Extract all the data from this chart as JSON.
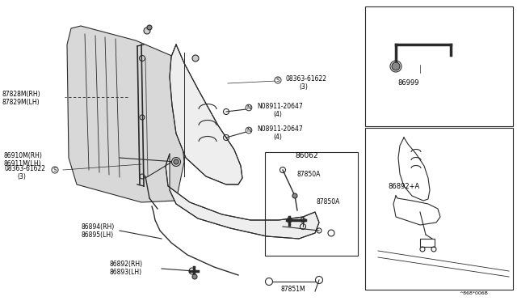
{
  "bg_color": "#ffffff",
  "line_color": "#2a2a2a",
  "text_color": "#000000",
  "fig_width": 6.4,
  "fig_height": 3.72,
  "watermark": "^868*006B",
  "labels": {
    "87828M_RH": "87828M(RH)",
    "87829M_LH": "87829M(LH)",
    "08363_top": "08363-61622",
    "08363_top_qty": "(3)",
    "08363_left": "08363-61622",
    "08363_left_qty": "(3)",
    "08911_top": "N08911-20647",
    "08911_top_qty": "(4)",
    "08911_bot": "N08911-20647",
    "08911_bot_qty": "(4)",
    "86910M_RH": "86910M(RH)",
    "86911M_LH": "86911M(LH)",
    "86894_RH": "86894(RH)",
    "86895_LH": "86895(LH)",
    "86892_RH": "86892(RH)",
    "86893_LH": "86893(LH)",
    "86062": "86062",
    "87850A_1": "87850A",
    "87850A_2": "87850A",
    "87851M": "87851M",
    "86999": "86999",
    "86892_A": "86892+A"
  }
}
